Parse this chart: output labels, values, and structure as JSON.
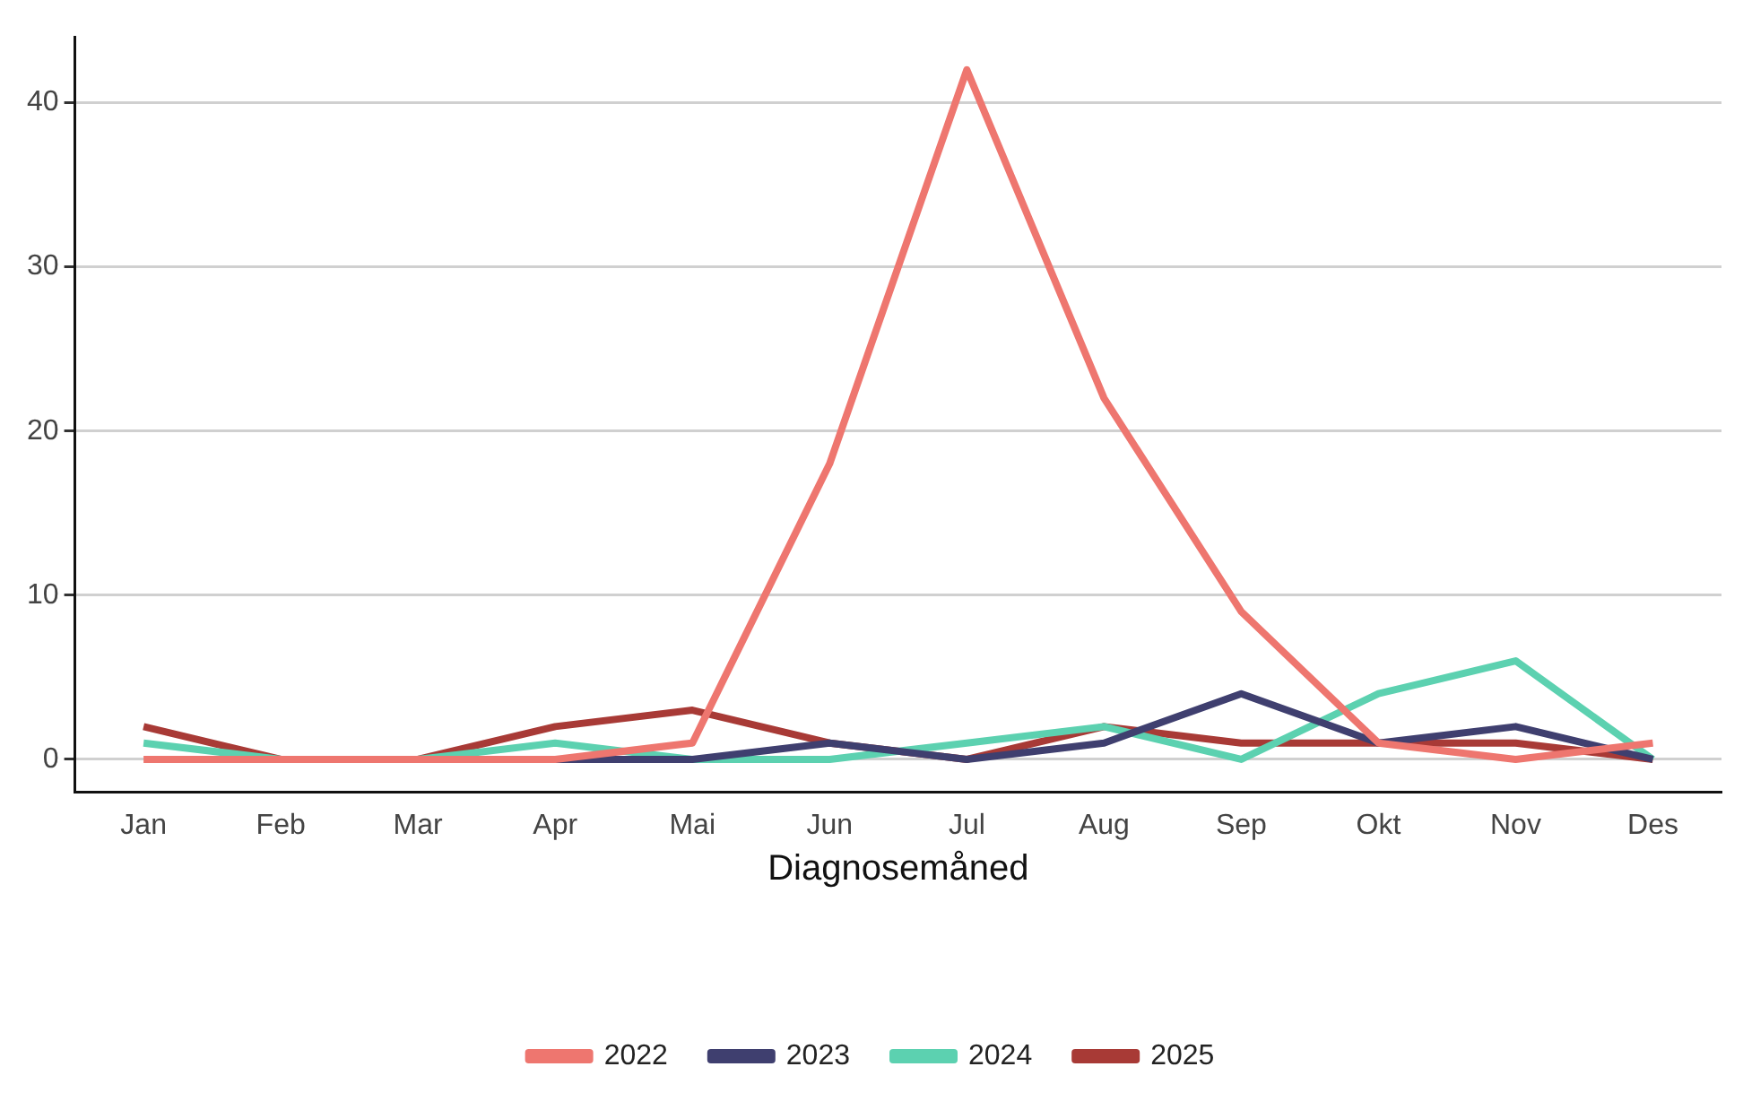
{
  "chart_data": {
    "type": "line",
    "xlabel": "Diagnosemåned",
    "categories": [
      "Jan",
      "Feb",
      "Mar",
      "Apr",
      "Mai",
      "Jun",
      "Jul",
      "Aug",
      "Sep",
      "Okt",
      "Nov",
      "Des"
    ],
    "series": [
      {
        "name": "2022",
        "color": "#ee766f",
        "values": [
          0,
          0,
          0,
          0,
          1,
          18,
          42,
          22,
          9,
          1,
          0,
          1
        ]
      },
      {
        "name": "2023",
        "color": "#3f3f6f",
        "values": [
          null,
          null,
          0,
          0,
          0,
          1,
          0,
          1,
          4,
          1,
          2,
          0
        ]
      },
      {
        "name": "2024",
        "color": "#5cd1b0",
        "values": [
          1,
          0,
          0,
          1,
          0,
          0,
          1,
          2,
          0,
          4,
          6,
          0
        ]
      },
      {
        "name": "2025",
        "color": "#a83a36",
        "values": [
          2,
          0,
          0,
          2,
          3,
          1,
          0,
          2,
          1,
          1,
          1,
          0
        ]
      }
    ],
    "ylim": [
      -2,
      44
    ],
    "yticks": [
      0,
      10,
      20,
      30,
      40
    ],
    "grid": "y",
    "legend": "bottom",
    "marker": "none",
    "line_style": "solid"
  }
}
